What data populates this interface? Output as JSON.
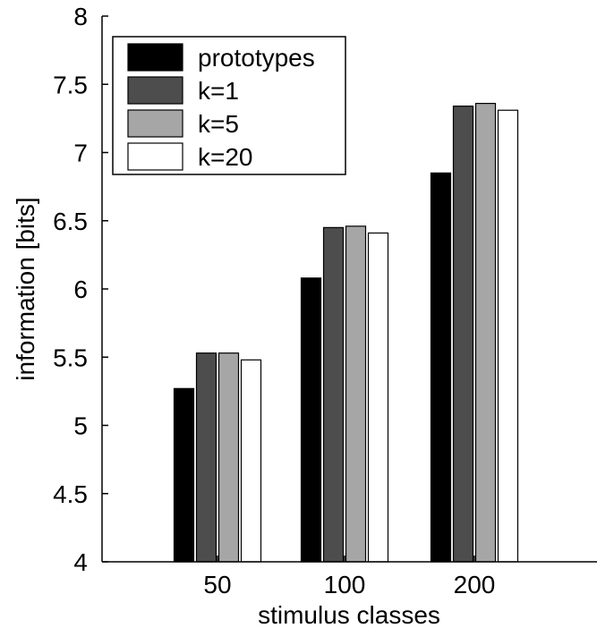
{
  "chart_data": {
    "type": "bar",
    "categories": [
      "50",
      "100",
      "200"
    ],
    "series": [
      {
        "name": "prototypes",
        "values": [
          5.27,
          6.08,
          6.85
        ],
        "color": "#000000"
      },
      {
        "name": "k=1",
        "values": [
          5.53,
          6.45,
          7.34
        ],
        "color": "#4d4d4d"
      },
      {
        "name": "k=5",
        "values": [
          5.53,
          6.46,
          7.36
        ],
        "color": "#a6a6a6"
      },
      {
        "name": "k=20",
        "values": [
          5.48,
          6.41,
          7.31
        ],
        "color": "#ffffff"
      }
    ],
    "xlabel": "stimulus classes",
    "ylabel": "information [bits]",
    "ylim": [
      4,
      8
    ],
    "yticks": [
      "4",
      "4.5",
      "5",
      "5.5",
      "6",
      "6.5",
      "7",
      "7.5",
      "8"
    ],
    "grid": false,
    "legend_position": "top-left"
  }
}
